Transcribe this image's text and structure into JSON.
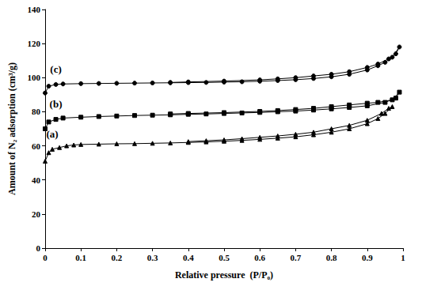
{
  "chart_data": {
    "type": "line",
    "x_label": "Relative pressure  (P/P₀)",
    "y_label": "Amount of N₂ adsorption (cm³/g)",
    "xlim": [
      0,
      1
    ],
    "xticks": [
      0,
      0.1,
      0.2,
      0.3,
      0.4,
      0.5,
      0.6,
      0.7,
      0.8,
      0.9,
      1
    ],
    "ylim": [
      0,
      140
    ],
    "yticks": [
      0,
      20,
      40,
      60,
      80,
      100,
      120,
      140
    ],
    "grid": false,
    "series": [
      {
        "name": "(a)",
        "color": "#000000",
        "marker": "triangle",
        "x": [
          0,
          0.01,
          0.02,
          0.04,
          0.06,
          0.08,
          0.1,
          0.15,
          0.2,
          0.25,
          0.3,
          0.35,
          0.4,
          0.45,
          0.5,
          0.55,
          0.6,
          0.65,
          0.7,
          0.75,
          0.8,
          0.85,
          0.9,
          0.93,
          0.95,
          0.97,
          0.96,
          0.94,
          0.9,
          0.85,
          0.8,
          0.75,
          0.7,
          0.65,
          0.6,
          0.55,
          0.5,
          0.45,
          0.4
        ],
        "values": [
          51,
          56,
          58,
          59,
          60,
          60.5,
          60.8,
          61,
          61.2,
          61.3,
          61.5,
          61.7,
          62,
          62.3,
          62.7,
          63.2,
          63.8,
          64.5,
          65.3,
          66.5,
          68,
          70,
          73,
          76,
          79,
          83,
          82,
          79,
          75,
          72,
          70,
          68,
          66.8,
          65.8,
          65,
          64.2,
          63.5,
          63,
          62.5
        ]
      },
      {
        "name": "(b)",
        "color": "#000000",
        "marker": "rect",
        "x": [
          0,
          0.01,
          0.03,
          0.05,
          0.1,
          0.15,
          0.2,
          0.25,
          0.3,
          0.35,
          0.4,
          0.45,
          0.5,
          0.55,
          0.6,
          0.65,
          0.7,
          0.75,
          0.8,
          0.85,
          0.9,
          0.95,
          0.98,
          0.99,
          0.97,
          0.93,
          0.9,
          0.85,
          0.8,
          0.75,
          0.7,
          0.65,
          0.6,
          0.5,
          0.4,
          0.35
        ],
        "values": [
          70,
          74,
          75.5,
          76.3,
          76.8,
          77.2,
          77.5,
          77.8,
          78,
          78.2,
          78.5,
          78.7,
          79,
          79.3,
          79.6,
          80,
          80.4,
          81,
          81.7,
          82.5,
          83.5,
          85.5,
          88,
          91.5,
          87,
          85.5,
          85,
          84,
          83,
          82,
          81.3,
          80.7,
          80.2,
          79.5,
          79,
          78.7
        ]
      },
      {
        "name": "(c)",
        "color": "#000000",
        "marker": "circle",
        "x": [
          0,
          0.01,
          0.03,
          0.05,
          0.1,
          0.15,
          0.2,
          0.25,
          0.3,
          0.35,
          0.4,
          0.45,
          0.5,
          0.55,
          0.6,
          0.65,
          0.7,
          0.75,
          0.8,
          0.85,
          0.9,
          0.93,
          0.95,
          0.97,
          0.99,
          0.98,
          0.96,
          0.93,
          0.9,
          0.85,
          0.8,
          0.75,
          0.7,
          0.65,
          0.6,
          0.5,
          0.4,
          0.35
        ],
        "values": [
          91,
          95,
          96,
          96.3,
          96.5,
          96.6,
          96.7,
          96.8,
          96.9,
          97,
          97.1,
          97.2,
          97.4,
          97.6,
          97.9,
          98.3,
          98.8,
          99.5,
          100.5,
          102,
          104.5,
          107,
          109,
          112,
          118,
          114,
          111,
          108,
          106,
          103.5,
          102,
          101,
          100,
          99.3,
          98.7,
          98,
          97.5,
          97.2
        ]
      }
    ]
  }
}
